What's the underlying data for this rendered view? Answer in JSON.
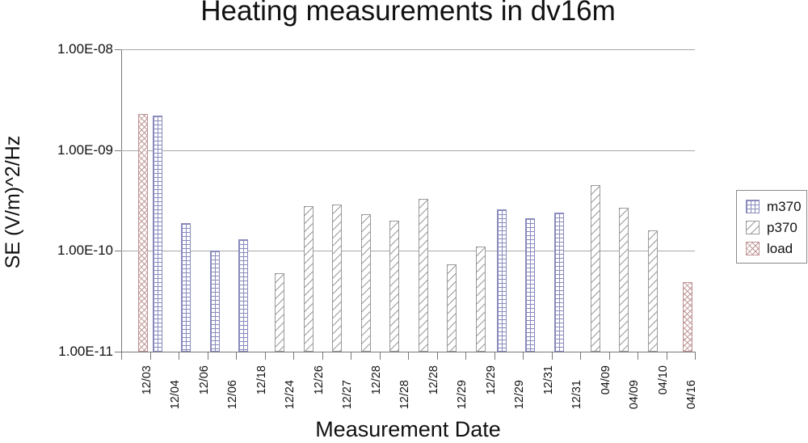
{
  "chart_data": {
    "type": "bar",
    "title": "Heating measurements in dv16m",
    "xlabel": "Measurement Date",
    "ylabel": "SE (V/m)^2/Hz",
    "y_scale": "log",
    "ylim": [
      1e-11,
      1e-08
    ],
    "y_tick_labels": [
      "1.00E-08",
      "1.00E-09",
      "1.00E-10",
      "1.00E-11"
    ],
    "grid": "horizontal",
    "legend_position": "right",
    "series_names": [
      "m370",
      "p370",
      "load"
    ],
    "series_colors": {
      "m370": "#8a8abd",
      "p370": "#9a9a9a",
      "load": "#bf9494"
    },
    "series_patterns": {
      "m370": "grid",
      "p370": "diagonal",
      "load": "crosshatch"
    },
    "categories": [
      "12/03",
      "12/04",
      "12/06",
      "12/06",
      "12/18",
      "12/24",
      "12/26",
      "12/27",
      "12/28",
      "12/28",
      "12/28",
      "12/29",
      "12/29",
      "12/29",
      "12/31",
      "12/31",
      "04/09",
      "04/09",
      "04/10",
      "04/16"
    ],
    "points": [
      {
        "date": "12/03",
        "series": "load",
        "value": 2.3e-09
      },
      {
        "date": "12/04",
        "series": "m370",
        "value": 2.2e-09
      },
      {
        "date": "12/06",
        "series": "m370",
        "value": 1.9e-10
      },
      {
        "date": "12/06",
        "series": "m370",
        "value": 1e-10
      },
      {
        "date": "12/18",
        "series": "m370",
        "value": 1.3e-10
      },
      {
        "date": "12/24",
        "series": "p370",
        "value": 6e-11
      },
      {
        "date": "12/26",
        "series": "p370",
        "value": 2.8e-10
      },
      {
        "date": "12/27",
        "series": "p370",
        "value": 2.9e-10
      },
      {
        "date": "12/28",
        "series": "p370",
        "value": 2.3e-10
      },
      {
        "date": "12/28",
        "series": "p370",
        "value": 2e-10
      },
      {
        "date": "12/28",
        "series": "p370",
        "value": 3.3e-10
      },
      {
        "date": "12/29",
        "series": "p370",
        "value": 7.3e-11
      },
      {
        "date": "12/29",
        "series": "p370",
        "value": 1.1e-10
      },
      {
        "date": "12/29",
        "series": "m370",
        "value": 2.6e-10
      },
      {
        "date": "12/31",
        "series": "m370",
        "value": 2.1e-10
      },
      {
        "date": "12/31",
        "series": "m370",
        "value": 2.4e-10
      },
      {
        "date": "04/09",
        "series": "p370",
        "value": 4.5e-10
      },
      {
        "date": "04/09",
        "series": "p370",
        "value": 2.7e-10
      },
      {
        "date": "04/10",
        "series": "p370",
        "value": 1.6e-10
      },
      {
        "date": "04/16",
        "series": "load",
        "value": 4.9e-11
      }
    ]
  }
}
